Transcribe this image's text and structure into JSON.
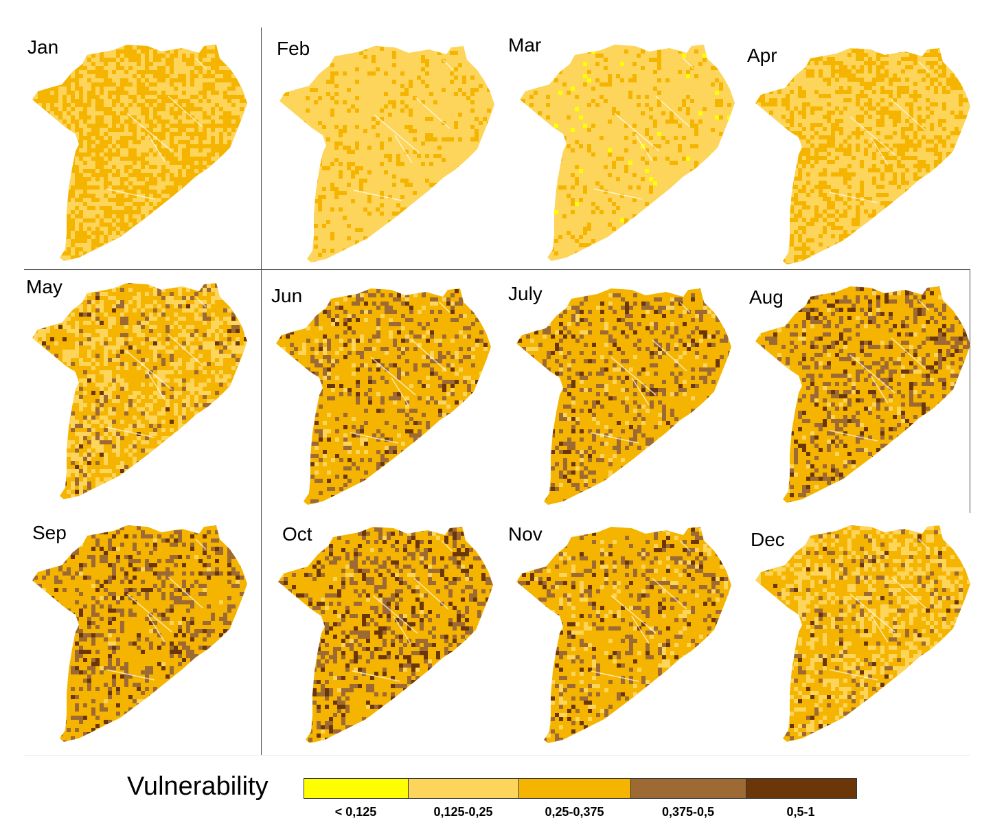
{
  "months": [
    {
      "label": "Jan",
      "shares": [
        0,
        0.45,
        0.55,
        0,
        0
      ]
    },
    {
      "label": "Feb",
      "shares": [
        0,
        0.85,
        0.15,
        0,
        0
      ]
    },
    {
      "label": "Mar",
      "shares": [
        0.02,
        0.85,
        0.13,
        0,
        0
      ]
    },
    {
      "label": "Apr",
      "shares": [
        0,
        0.6,
        0.4,
        0,
        0
      ]
    },
    {
      "label": "May",
      "shares": [
        0,
        0.35,
        0.55,
        0.08,
        0.02
      ]
    },
    {
      "label": "Jun",
      "shares": [
        0,
        0.08,
        0.72,
        0.15,
        0.05
      ]
    },
    {
      "label": "July",
      "shares": [
        0,
        0.05,
        0.72,
        0.18,
        0.05
      ]
    },
    {
      "label": "Aug",
      "shares": [
        0,
        0.04,
        0.68,
        0.2,
        0.08
      ]
    },
    {
      "label": "Sep",
      "shares": [
        0,
        0.02,
        0.7,
        0.22,
        0.06
      ]
    },
    {
      "label": "Oct",
      "shares": [
        0,
        0.03,
        0.67,
        0.2,
        0.1
      ]
    },
    {
      "label": "Nov",
      "shares": [
        0,
        0.1,
        0.7,
        0.15,
        0.05
      ]
    },
    {
      "label": "Dec",
      "shares": [
        0,
        0.3,
        0.6,
        0.08,
        0.02
      ]
    }
  ],
  "legend": {
    "title": "Vulnerability",
    "classes": [
      {
        "label": "< 0,125",
        "color": "#ffff00"
      },
      {
        "label": "0,125-0,25",
        "color": "#fdd55a"
      },
      {
        "label": "0,25-0,375",
        "color": "#f5b400"
      },
      {
        "label": "0,375-0,5",
        "color": "#9e6a33"
      },
      {
        "label": "0,5-1",
        "color": "#6b3608"
      }
    ]
  }
}
